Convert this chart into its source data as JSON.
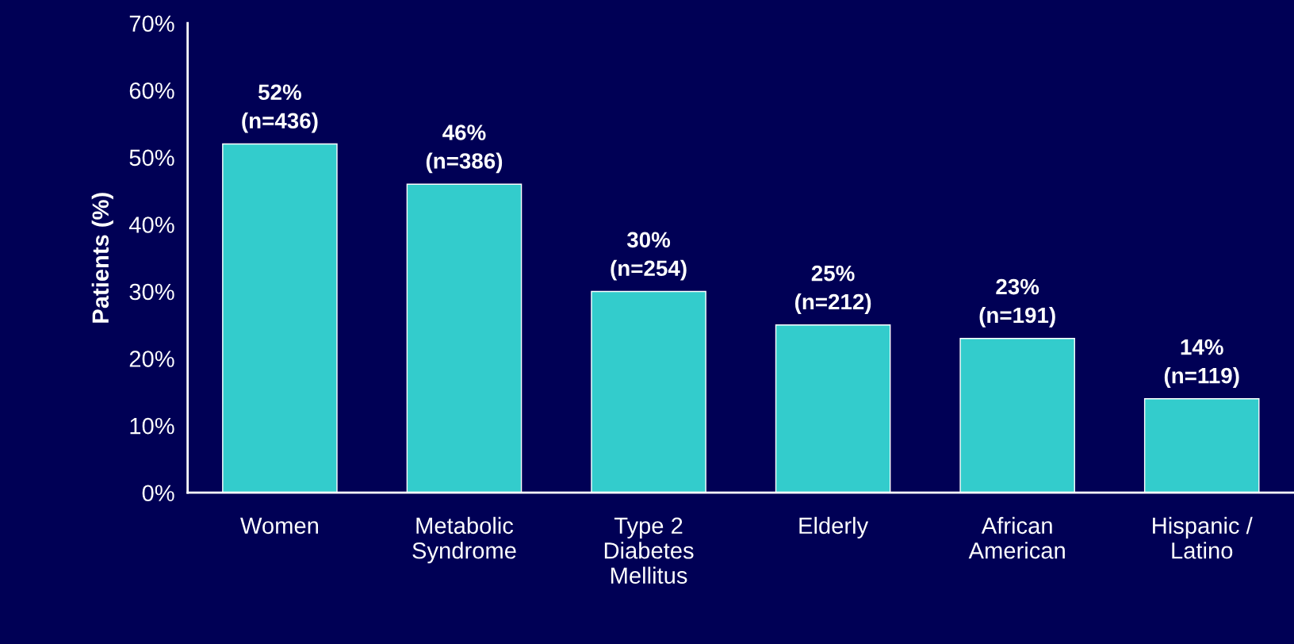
{
  "chart_data": {
    "type": "bar",
    "ylabel": "Patients (%)",
    "categories": [
      "Women",
      "Metabolic\nSyndrome",
      "Type 2\nDiabetes\nMellitus",
      "Elderly",
      "African\nAmerican",
      "Hispanic /\nLatino"
    ],
    "values": [
      52,
      46,
      30,
      25,
      23,
      14
    ],
    "value_labels": [
      "52%\n(n=436)",
      "46%\n(n=386)",
      "30%\n(n=254)",
      "25%\n(n=212)",
      "23%\n(n=191)",
      "14%\n(n=119)"
    ],
    "color": "#33cccc",
    "ylim": [
      0,
      70
    ],
    "yticks": [
      {
        "value": 0,
        "label": "0%"
      },
      {
        "value": 10,
        "label": "10%"
      },
      {
        "value": 20,
        "label": "20%"
      },
      {
        "value": 30,
        "label": "30%"
      },
      {
        "value": 40,
        "label": "40%"
      },
      {
        "value": 50,
        "label": "50%"
      },
      {
        "value": 60,
        "label": "60%"
      },
      {
        "value": 70,
        "label": "70%"
      }
    ],
    "grid": false,
    "legend": false
  }
}
